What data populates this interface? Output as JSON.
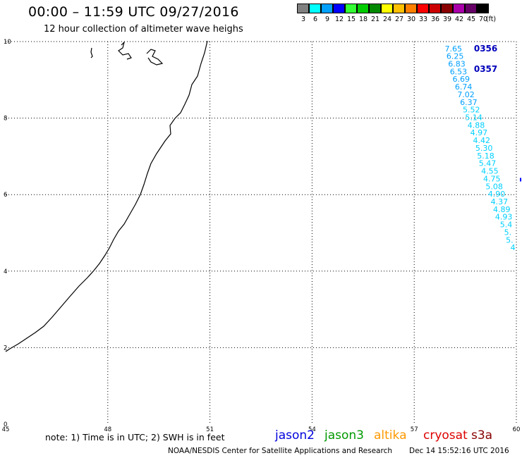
{
  "header": {
    "title": "00:00 – 11:59 UTC 09/27/2016",
    "subtitle": "12 hour collection of altimeter wave heighs"
  },
  "legend": {
    "unit": "(ft)",
    "bins": [
      {
        "label": "3",
        "color": "#808080"
      },
      {
        "label": "6",
        "color": "#00ffff"
      },
      {
        "label": "9",
        "color": "#00a0ff"
      },
      {
        "label": "12",
        "color": "#0000ff"
      },
      {
        "label": "15",
        "color": "#33ff33"
      },
      {
        "label": "18",
        "color": "#00cc00"
      },
      {
        "label": "21",
        "color": "#008800"
      },
      {
        "label": "24",
        "color": "#ffff00"
      },
      {
        "label": "27",
        "color": "#ffc000"
      },
      {
        "label": "30",
        "color": "#ff8000"
      },
      {
        "label": "33",
        "color": "#ff0000"
      },
      {
        "label": "36",
        "color": "#cc0000"
      },
      {
        "label": "39",
        "color": "#880000"
      },
      {
        "label": "42",
        "color": "#aa00aa"
      },
      {
        "label": "45",
        "color": "#660066"
      },
      {
        "label": "70",
        "color": "#000000"
      }
    ]
  },
  "map": {
    "x_ticks": [
      45,
      48,
      51,
      54,
      57,
      60
    ],
    "y_ticks": [
      0,
      2,
      4,
      6,
      8,
      10
    ],
    "x_range": [
      45,
      60
    ],
    "y_range": [
      0,
      10
    ],
    "pass_labels": [
      {
        "label": "0356",
        "x": 59.1,
        "y": 9.82
      },
      {
        "label": "0357",
        "x": 59.1,
        "y": 9.28
      }
    ],
    "wave_track": [
      {
        "value": "7.65",
        "lon": 58.15,
        "lat": 9.82,
        "color": "#00a0ff"
      },
      {
        "value": "6.25",
        "lon": 58.2,
        "lat": 9.62,
        "color": "#00a0ff"
      },
      {
        "value": "6.83",
        "lon": 58.25,
        "lat": 9.42,
        "color": "#00a0ff"
      },
      {
        "value": "6.53",
        "lon": 58.3,
        "lat": 9.22,
        "color": "#00a0ff"
      },
      {
        "value": "6.69",
        "lon": 58.38,
        "lat": 9.02,
        "color": "#00a0ff"
      },
      {
        "value": "6.74",
        "lon": 58.45,
        "lat": 8.82,
        "color": "#00a0ff"
      },
      {
        "value": "7.02",
        "lon": 58.52,
        "lat": 8.62,
        "color": "#00a0ff"
      },
      {
        "value": "6.37",
        "lon": 58.6,
        "lat": 8.42,
        "color": "#00a0ff"
      },
      {
        "value": "5.52",
        "lon": 58.68,
        "lat": 8.22,
        "color": "#00d0ff"
      },
      {
        "value": "5.14",
        "lon": 58.75,
        "lat": 8.02,
        "color": "#00d0ff"
      },
      {
        "value": "4.88",
        "lon": 58.82,
        "lat": 7.82,
        "color": "#00d0ff"
      },
      {
        "value": "4.97",
        "lon": 58.9,
        "lat": 7.62,
        "color": "#00d0ff"
      },
      {
        "value": "4.42",
        "lon": 58.98,
        "lat": 7.42,
        "color": "#00d0ff"
      },
      {
        "value": "5.30",
        "lon": 59.05,
        "lat": 7.22,
        "color": "#00d0ff"
      },
      {
        "value": "5.18",
        "lon": 59.1,
        "lat": 7.02,
        "color": "#00d0ff"
      },
      {
        "value": "5.47",
        "lon": 59.15,
        "lat": 6.82,
        "color": "#00d0ff"
      },
      {
        "value": "4.55",
        "lon": 59.22,
        "lat": 6.62,
        "color": "#00d0ff"
      },
      {
        "value": "4.75",
        "lon": 59.28,
        "lat": 6.42,
        "color": "#00d0ff"
      },
      {
        "value": "5.08",
        "lon": 59.35,
        "lat": 6.22,
        "color": "#00d0ff"
      },
      {
        "value": "4.90",
        "lon": 59.42,
        "lat": 6.02,
        "color": "#00d0ff"
      },
      {
        "value": "4.37",
        "lon": 59.5,
        "lat": 5.82,
        "color": "#00d0ff"
      },
      {
        "value": "4.89",
        "lon": 59.57,
        "lat": 5.62,
        "color": "#00d0ff"
      },
      {
        "value": "4.93",
        "lon": 59.63,
        "lat": 5.42,
        "color": "#00d0ff"
      },
      {
        "value": "5.4",
        "lon": 59.7,
        "lat": 5.22,
        "color": "#00d0ff"
      },
      {
        "value": "5.",
        "lon": 59.75,
        "lat": 5.02,
        "color": "#00d0ff"
      },
      {
        "value": "5.",
        "lon": 59.8,
        "lat": 4.82,
        "color": "#00d0ff"
      },
      {
        "value": "4",
        "lon": 59.9,
        "lat": 4.62,
        "color": "#00d0ff"
      }
    ]
  },
  "footer": {
    "note": "note: 1) Time is in UTC; 2) SWH is in feet",
    "satellites": [
      {
        "name": "jason2",
        "color": "#0000dd"
      },
      {
        "name": "jason3",
        "color": "#009900"
      },
      {
        "name": "altika",
        "color": "#ff9900"
      },
      {
        "name": "cryosat",
        "color": "#dd0000"
      },
      {
        "name": "s3a",
        "color": "#880000"
      }
    ],
    "credit": "NOAA/NESDIS Center for Satellite Applications and Research",
    "timestamp": "Dec 14 15:52:16 UTC 2016"
  }
}
